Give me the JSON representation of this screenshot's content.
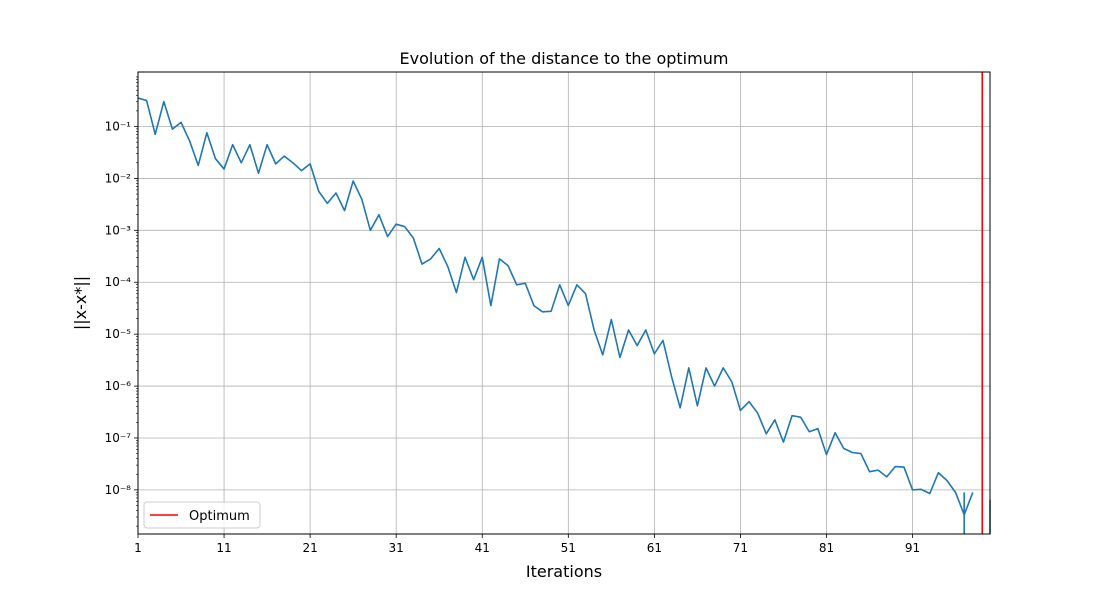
{
  "chart_data": {
    "type": "line",
    "title": "Evolution of the distance to the optimum",
    "xlabel": "Iterations",
    "ylabel": "||x-x*||",
    "xlim": [
      1,
      100
    ],
    "ylim_log10": [
      -8.85,
      0.05
    ],
    "yscale": "log",
    "grid": true,
    "x_ticks": [
      1,
      11,
      21,
      31,
      41,
      51,
      61,
      71,
      81,
      91
    ],
    "y_ticks": [
      {
        "exp": -1,
        "label": "10⁻¹"
      },
      {
        "exp": -2,
        "label": "10⁻²"
      },
      {
        "exp": -3,
        "label": "10⁻³"
      },
      {
        "exp": -4,
        "label": "10⁻⁴"
      },
      {
        "exp": -5,
        "label": "10⁻⁵"
      },
      {
        "exp": -6,
        "label": "10⁻⁶"
      },
      {
        "exp": -7,
        "label": "10⁻⁷"
      },
      {
        "exp": -8,
        "label": "10⁻⁸"
      }
    ],
    "series": [
      {
        "name": "||x-x*||",
        "color": "#1f77b4",
        "x": [
          1,
          2,
          3,
          4,
          5,
          6,
          7,
          8,
          9,
          10,
          11,
          12,
          13,
          14,
          15,
          16,
          17,
          18,
          19,
          20,
          21,
          22,
          23,
          24,
          25,
          26,
          27,
          28,
          29,
          30,
          31,
          32,
          33,
          34,
          35,
          36,
          37,
          38,
          39,
          40,
          41,
          42,
          43,
          44,
          45,
          46,
          47,
          48,
          49,
          50,
          51,
          52,
          53,
          54,
          55,
          56,
          57,
          58,
          59,
          60,
          61,
          62,
          63,
          64,
          65,
          66,
          67,
          68,
          69,
          70,
          71,
          72,
          73,
          74,
          75,
          76,
          77,
          78,
          79,
          80,
          81,
          82,
          83,
          84,
          85,
          86,
          87,
          88,
          89,
          90,
          91,
          92,
          93,
          94,
          95,
          96,
          97,
          98
        ],
        "log10_values": [
          -0.45,
          -0.5,
          -1.15,
          -0.52,
          -1.05,
          -0.92,
          -1.28,
          -1.75,
          -1.12,
          -1.62,
          -1.82,
          -1.35,
          -1.7,
          -1.35,
          -1.9,
          -1.35,
          -1.72,
          -1.57,
          -1.7,
          -1.85,
          -1.72,
          -2.25,
          -2.48,
          -2.28,
          -2.62,
          -2.05,
          -2.4,
          -3.0,
          -2.7,
          -3.12,
          -2.88,
          -2.93,
          -3.15,
          -3.65,
          -3.55,
          -3.35,
          -3.7,
          -4.2,
          -3.52,
          -3.95,
          -3.52,
          -4.45,
          -3.55,
          -3.68,
          -4.05,
          -4.02,
          -4.45,
          -4.57,
          -4.56,
          -4.05,
          -4.45,
          -4.05,
          -4.22,
          -4.92,
          -5.4,
          -4.72,
          -5.45,
          -4.92,
          -5.22,
          -4.92,
          -5.38,
          -5.12,
          -5.82,
          -6.42,
          -5.65,
          -6.38,
          -5.65,
          -6.0,
          -5.65,
          -5.92,
          -6.47,
          -6.3,
          -6.52,
          -6.92,
          -6.65,
          -7.08,
          -6.57,
          -6.6,
          -6.88,
          -6.82,
          -7.32,
          -6.9,
          -7.2,
          -7.28,
          -7.3,
          -7.65,
          -7.62,
          -7.75,
          -7.55,
          -7.56,
          -8.0,
          -7.99,
          -8.07,
          -7.67,
          -7.82,
          -8.05,
          -8.48,
          -8.05
        ]
      }
    ],
    "drops_to_zero": [
      97,
      100
    ],
    "vlines": [
      {
        "x": 99.1,
        "label": "Optimum",
        "color": "#ff0000"
      }
    ],
    "legend": {
      "entries": [
        "Optimum"
      ],
      "placement": "lower-left"
    }
  }
}
